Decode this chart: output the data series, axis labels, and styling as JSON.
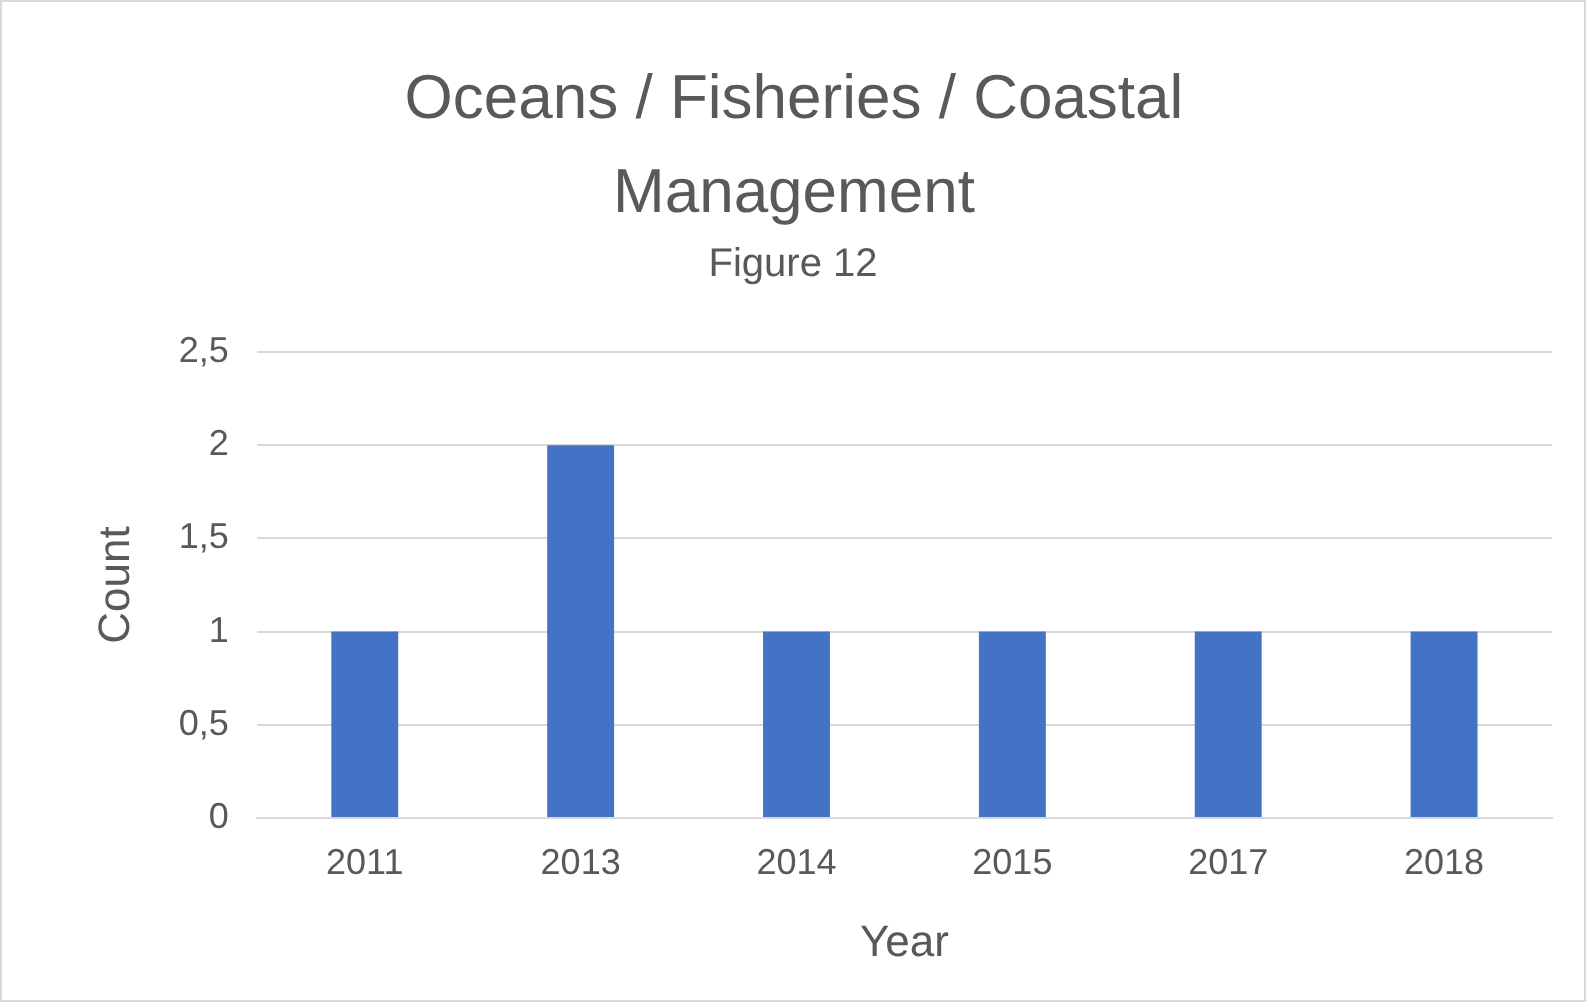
{
  "chart_data": {
    "type": "bar",
    "title": "Oceans / Fisheries / Coastal Management",
    "subtitle": "Figure 12",
    "xlabel": "Year",
    "ylabel": "Count",
    "categories": [
      "2011",
      "2013",
      "2014",
      "2015",
      "2017",
      "2018"
    ],
    "values": [
      1,
      2,
      1,
      1,
      1,
      1
    ],
    "color": "#4472c4",
    "ylim": [
      0,
      2.5
    ],
    "yticks": [
      0,
      {
        "value": 0.5,
        "label": "0,5"
      },
      1,
      {
        "value": 1.5,
        "label": "1,5"
      },
      2,
      {
        "value": 2.5,
        "label": "2,5"
      }
    ],
    "grid": "y",
    "legend": false
  }
}
